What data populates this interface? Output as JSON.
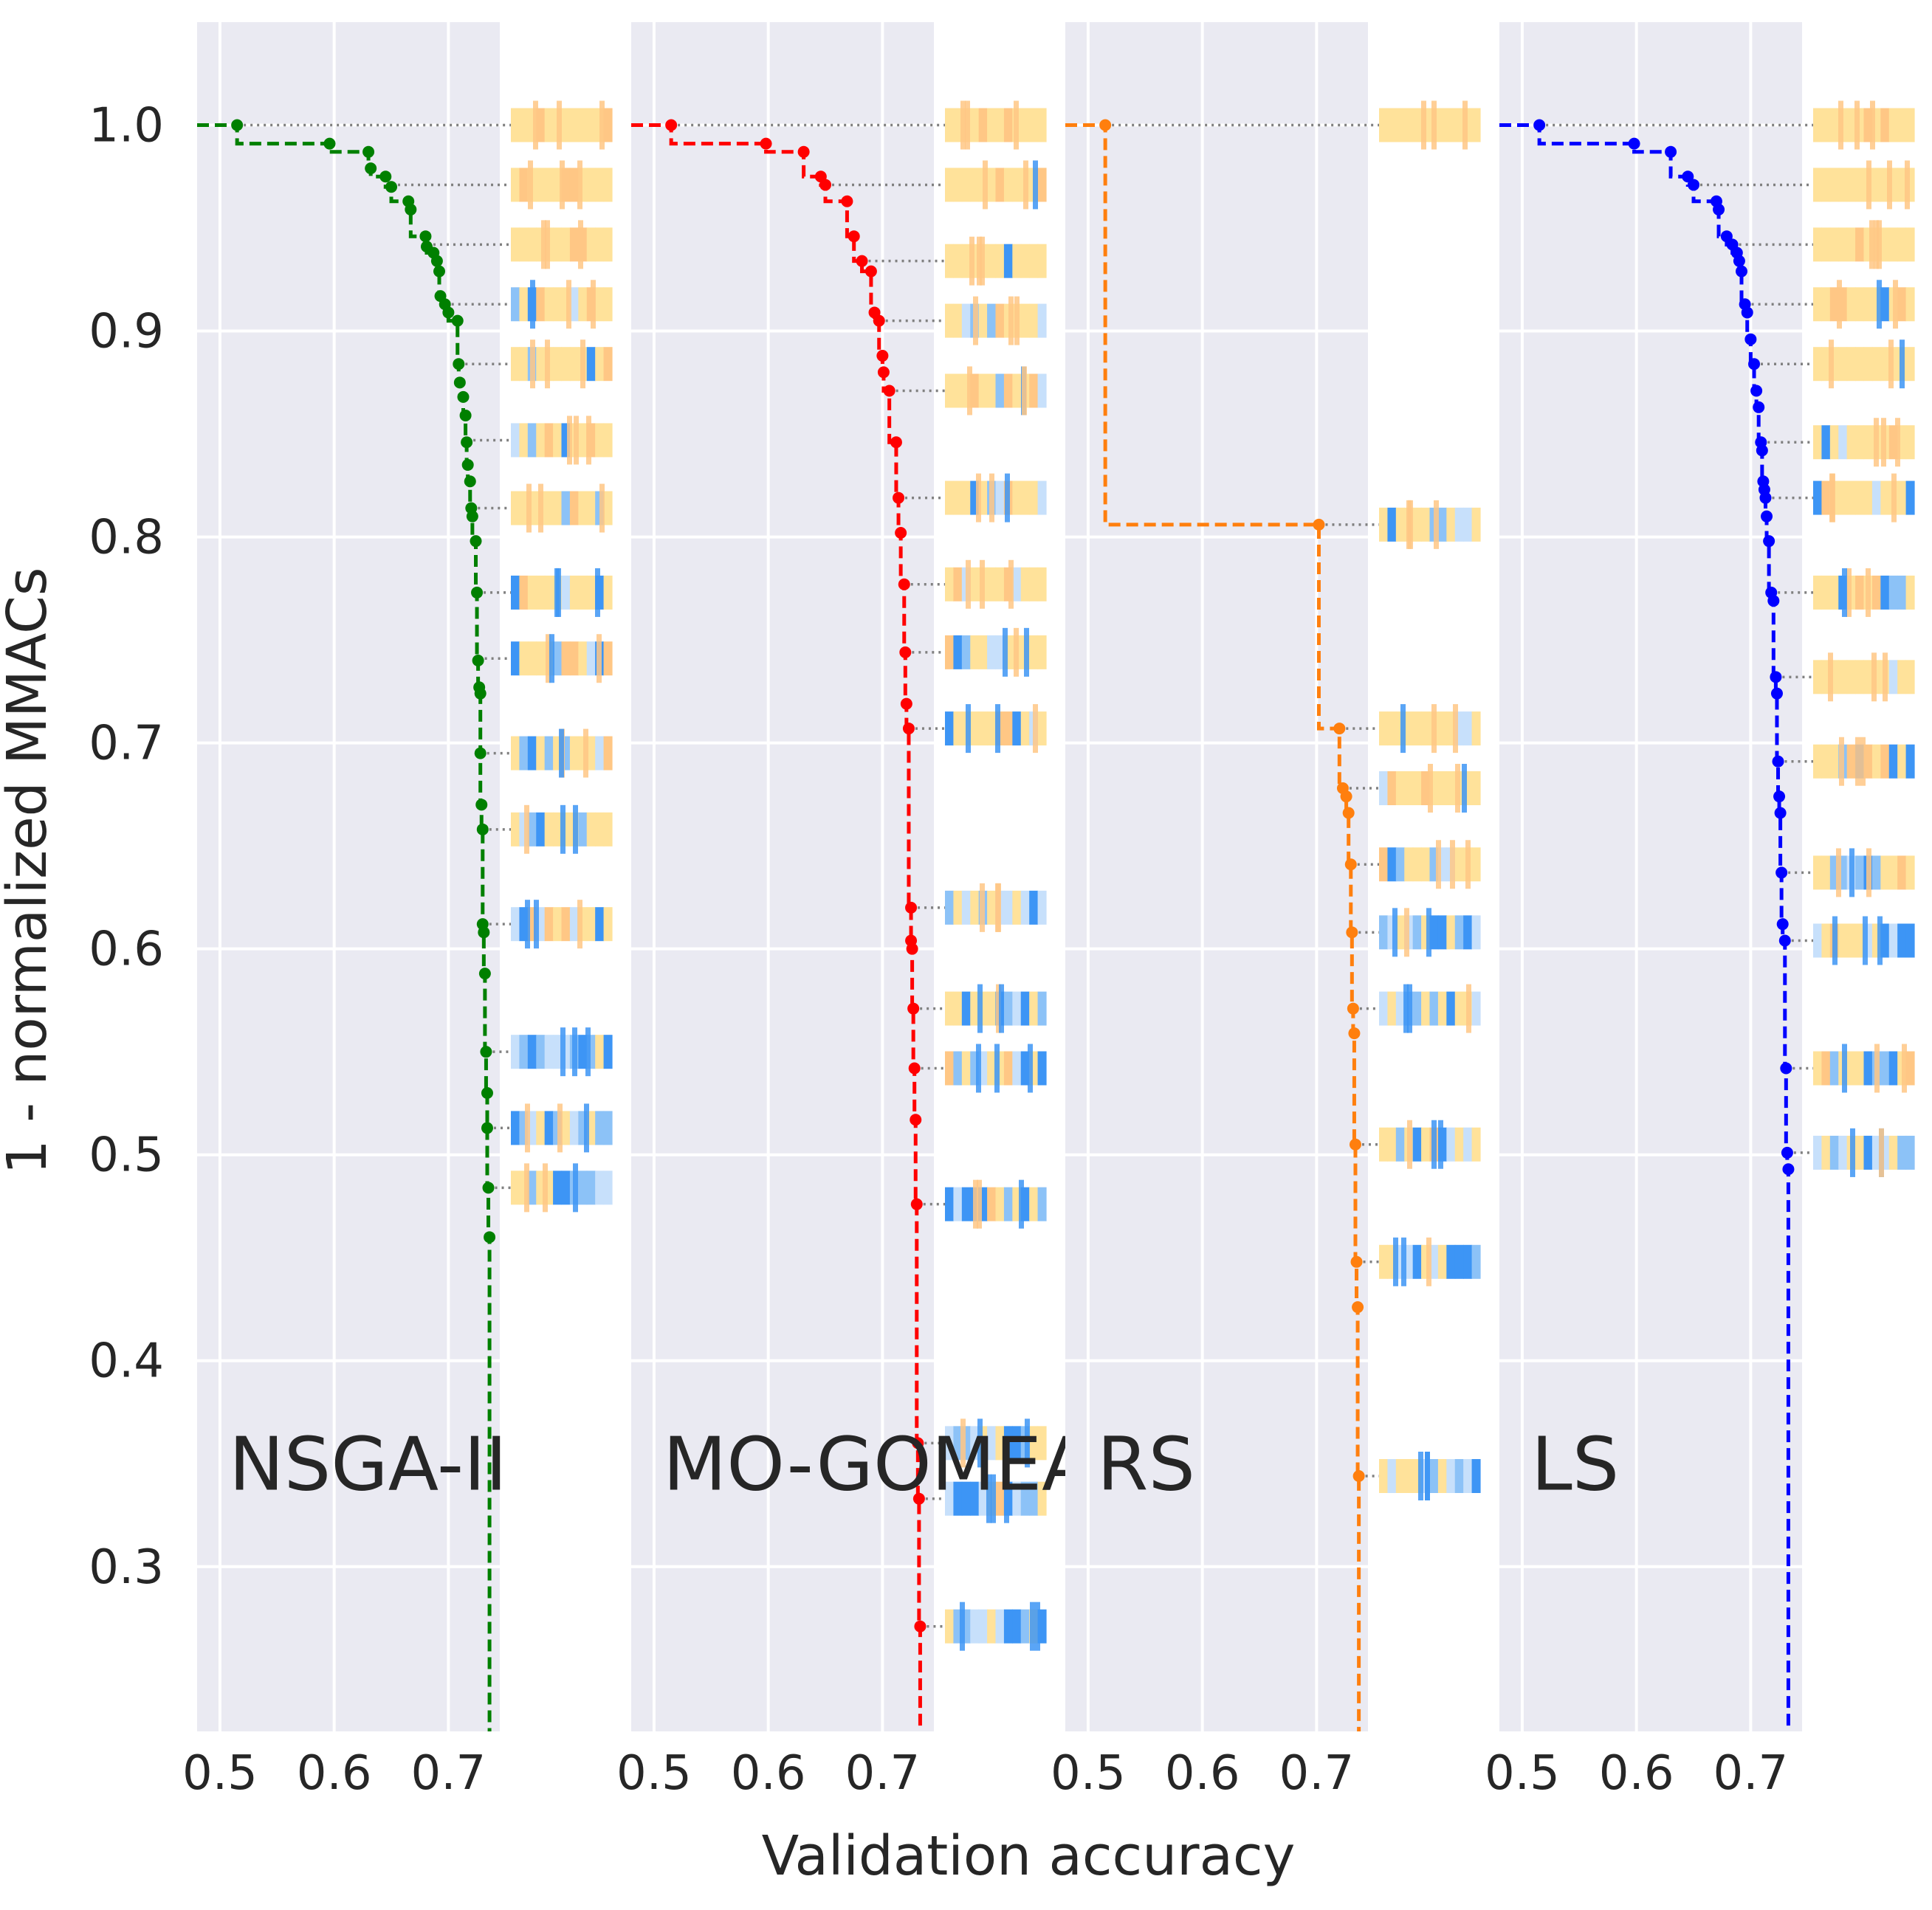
{
  "chart_data": {
    "type": "line",
    "title": "",
    "xlabel": "Validation accuracy",
    "ylabel": "1 - normalized MMACs",
    "xlim": [
      0.48,
      0.745
    ],
    "ylim": [
      0.22,
      1.05
    ],
    "x_ticks": [
      "0.5",
      "0.6",
      "0.7"
    ],
    "y_ticks": [
      "0.3",
      "0.4",
      "0.5",
      "0.6",
      "0.7",
      "0.8",
      "0.9",
      "1.0"
    ],
    "grid": true,
    "step_line": true,
    "colors": {
      "plot_background": "#eaeaf2",
      "grid": "#ffffff",
      "guide_line": "#808080",
      "strip_light_yellow": "#ffe29a",
      "strip_orange": "#ffc785",
      "strip_light_blue": "#c7e0fb",
      "strip_mid_blue": "#8cc2f7",
      "strip_blue": "#3d95f5"
    },
    "panels": [
      {
        "name": "NSGA-II",
        "color": "#008000",
        "points": [
          {
            "x": 0.515,
            "y": 1.0
          },
          {
            "x": 0.596,
            "y": 0.991
          },
          {
            "x": 0.63,
            "y": 0.987
          },
          {
            "x": 0.632,
            "y": 0.979
          },
          {
            "x": 0.645,
            "y": 0.975
          },
          {
            "x": 0.65,
            "y": 0.97
          },
          {
            "x": 0.665,
            "y": 0.963
          },
          {
            "x": 0.667,
            "y": 0.959
          },
          {
            "x": 0.68,
            "y": 0.946
          },
          {
            "x": 0.681,
            "y": 0.941
          },
          {
            "x": 0.687,
            "y": 0.938
          },
          {
            "x": 0.69,
            "y": 0.934
          },
          {
            "x": 0.692,
            "y": 0.929
          },
          {
            "x": 0.693,
            "y": 0.917
          },
          {
            "x": 0.697,
            "y": 0.913
          },
          {
            "x": 0.7,
            "y": 0.909
          },
          {
            "x": 0.708,
            "y": 0.905
          },
          {
            "x": 0.709,
            "y": 0.884
          },
          {
            "x": 0.71,
            "y": 0.875
          },
          {
            "x": 0.713,
            "y": 0.868
          },
          {
            "x": 0.715,
            "y": 0.859
          },
          {
            "x": 0.716,
            "y": 0.846
          },
          {
            "x": 0.717,
            "y": 0.835
          },
          {
            "x": 0.719,
            "y": 0.827
          },
          {
            "x": 0.72,
            "y": 0.814
          },
          {
            "x": 0.721,
            "y": 0.81
          },
          {
            "x": 0.724,
            "y": 0.798
          },
          {
            "x": 0.725,
            "y": 0.773
          },
          {
            "x": 0.726,
            "y": 0.74
          },
          {
            "x": 0.727,
            "y": 0.727
          },
          {
            "x": 0.728,
            "y": 0.724
          },
          {
            "x": 0.728,
            "y": 0.695
          },
          {
            "x": 0.729,
            "y": 0.67
          },
          {
            "x": 0.73,
            "y": 0.658
          },
          {
            "x": 0.73,
            "y": 0.612
          },
          {
            "x": 0.731,
            "y": 0.608
          },
          {
            "x": 0.732,
            "y": 0.588
          },
          {
            "x": 0.733,
            "y": 0.55
          },
          {
            "x": 0.734,
            "y": 0.53
          },
          {
            "x": 0.734,
            "y": 0.513
          },
          {
            "x": 0.735,
            "y": 0.484
          },
          {
            "x": 0.736,
            "y": 0.46
          }
        ],
        "tail_to_ymin": true,
        "strip_levels": [
          1.0,
          0.971,
          0.942,
          0.913,
          0.884,
          0.847,
          0.814,
          0.773,
          0.741,
          0.695,
          0.658,
          0.612,
          0.55,
          0.513,
          0.484
        ],
        "guide_end_x": 0.733
      },
      {
        "name": "MO-GOMEA",
        "color": "#ff0000",
        "points": [
          {
            "x": 0.515,
            "y": 1.0
          },
          {
            "x": 0.598,
            "y": 0.991
          },
          {
            "x": 0.631,
            "y": 0.987
          },
          {
            "x": 0.646,
            "y": 0.975
          },
          {
            "x": 0.65,
            "y": 0.971
          },
          {
            "x": 0.669,
            "y": 0.963
          },
          {
            "x": 0.675,
            "y": 0.946
          },
          {
            "x": 0.682,
            "y": 0.934
          },
          {
            "x": 0.69,
            "y": 0.929
          },
          {
            "x": 0.693,
            "y": 0.909
          },
          {
            "x": 0.697,
            "y": 0.905
          },
          {
            "x": 0.7,
            "y": 0.888
          },
          {
            "x": 0.701,
            "y": 0.88
          },
          {
            "x": 0.706,
            "y": 0.871
          },
          {
            "x": 0.712,
            "y": 0.846
          },
          {
            "x": 0.714,
            "y": 0.819
          },
          {
            "x": 0.716,
            "y": 0.802
          },
          {
            "x": 0.719,
            "y": 0.777
          },
          {
            "x": 0.72,
            "y": 0.744
          },
          {
            "x": 0.721,
            "y": 0.719
          },
          {
            "x": 0.723,
            "y": 0.707
          },
          {
            "x": 0.725,
            "y": 0.62
          },
          {
            "x": 0.725,
            "y": 0.604
          },
          {
            "x": 0.726,
            "y": 0.6
          },
          {
            "x": 0.727,
            "y": 0.571
          },
          {
            "x": 0.728,
            "y": 0.542
          },
          {
            "x": 0.729,
            "y": 0.517
          },
          {
            "x": 0.73,
            "y": 0.476
          },
          {
            "x": 0.731,
            "y": 0.36
          },
          {
            "x": 0.732,
            "y": 0.333
          },
          {
            "x": 0.733,
            "y": 0.271
          }
        ],
        "tail_to_ymin": true,
        "strip_levels": [
          1.0,
          0.971,
          0.934,
          0.905,
          0.871,
          0.819,
          0.777,
          0.744,
          0.707,
          0.62,
          0.571,
          0.542,
          0.476,
          0.36,
          0.333,
          0.271
        ],
        "guide_end_x": 0.733
      },
      {
        "name": "RS",
        "color": "#ff7f0e",
        "points": [
          {
            "x": 0.515,
            "y": 1.0
          },
          {
            "x": 0.702,
            "y": 0.806
          },
          {
            "x": 0.72,
            "y": 0.707
          },
          {
            "x": 0.723,
            "y": 0.678
          },
          {
            "x": 0.726,
            "y": 0.674
          },
          {
            "x": 0.728,
            "y": 0.666
          },
          {
            "x": 0.73,
            "y": 0.641
          },
          {
            "x": 0.731,
            "y": 0.608
          },
          {
            "x": 0.732,
            "y": 0.571
          },
          {
            "x": 0.733,
            "y": 0.559
          },
          {
            "x": 0.734,
            "y": 0.505
          },
          {
            "x": 0.735,
            "y": 0.448
          },
          {
            "x": 0.736,
            "y": 0.426
          },
          {
            "x": 0.737,
            "y": 0.344
          }
        ],
        "tail_to_ymin": true,
        "strip_levels": [
          1.0,
          0.806,
          0.707,
          0.678,
          0.641,
          0.608,
          0.571,
          0.505,
          0.448,
          0.344
        ],
        "guide_end_x": 0.735
      },
      {
        "name": "LS",
        "color": "#0000ff",
        "points": [
          {
            "x": 0.515,
            "y": 1.0
          },
          {
            "x": 0.598,
            "y": 0.991
          },
          {
            "x": 0.63,
            "y": 0.987
          },
          {
            "x": 0.645,
            "y": 0.975
          },
          {
            "x": 0.65,
            "y": 0.971
          },
          {
            "x": 0.67,
            "y": 0.963
          },
          {
            "x": 0.672,
            "y": 0.959
          },
          {
            "x": 0.679,
            "y": 0.946
          },
          {
            "x": 0.684,
            "y": 0.942
          },
          {
            "x": 0.688,
            "y": 0.938
          },
          {
            "x": 0.69,
            "y": 0.934
          },
          {
            "x": 0.692,
            "y": 0.929
          },
          {
            "x": 0.695,
            "y": 0.913
          },
          {
            "x": 0.697,
            "y": 0.909
          },
          {
            "x": 0.7,
            "y": 0.896
          },
          {
            "x": 0.703,
            "y": 0.884
          },
          {
            "x": 0.705,
            "y": 0.871
          },
          {
            "x": 0.707,
            "y": 0.863
          },
          {
            "x": 0.709,
            "y": 0.846
          },
          {
            "x": 0.71,
            "y": 0.842
          },
          {
            "x": 0.711,
            "y": 0.827
          },
          {
            "x": 0.712,
            "y": 0.823
          },
          {
            "x": 0.713,
            "y": 0.819
          },
          {
            "x": 0.714,
            "y": 0.81
          },
          {
            "x": 0.716,
            "y": 0.798
          },
          {
            "x": 0.718,
            "y": 0.773
          },
          {
            "x": 0.72,
            "y": 0.769
          },
          {
            "x": 0.722,
            "y": 0.732
          },
          {
            "x": 0.723,
            "y": 0.724
          },
          {
            "x": 0.724,
            "y": 0.691
          },
          {
            "x": 0.725,
            "y": 0.674
          },
          {
            "x": 0.726,
            "y": 0.666
          },
          {
            "x": 0.727,
            "y": 0.637
          },
          {
            "x": 0.728,
            "y": 0.612
          },
          {
            "x": 0.73,
            "y": 0.604
          },
          {
            "x": 0.731,
            "y": 0.542
          },
          {
            "x": 0.732,
            "y": 0.501
          },
          {
            "x": 0.733,
            "y": 0.493
          }
        ],
        "tail_to_ymin": true,
        "strip_levels": [
          1.0,
          0.971,
          0.942,
          0.913,
          0.884,
          0.846,
          0.819,
          0.773,
          0.732,
          0.691,
          0.637,
          0.604,
          0.542,
          0.501
        ],
        "guide_end_x": 0.745
      }
    ]
  }
}
